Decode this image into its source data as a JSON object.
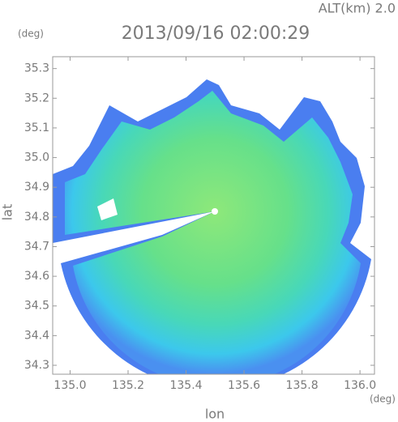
{
  "chart_data": {
    "type": "map",
    "title": "2013/09/16 02:00:29",
    "subtitle": "ALT(km) 2.0",
    "x_label": "lon",
    "y_label": "lat",
    "x_unit": "(deg)",
    "y_unit": "(deg)",
    "xlim": [
      134.94,
      136.05
    ],
    "ylim": [
      34.27,
      35.34
    ],
    "xticks": [
      {
        "value": 135,
        "label": "135.0"
      },
      135.2,
      135.4,
      135.6,
      135.8,
      {
        "value": 136,
        "label": "136.0"
      }
    ],
    "yticks": [
      34.3,
      34.4,
      34.5,
      34.6,
      34.7,
      34.8,
      34.9,
      {
        "value": 35,
        "label": "35.0"
      },
      35.1,
      35.2,
      35.3
    ],
    "color": "#7a7a7a"
  }
}
